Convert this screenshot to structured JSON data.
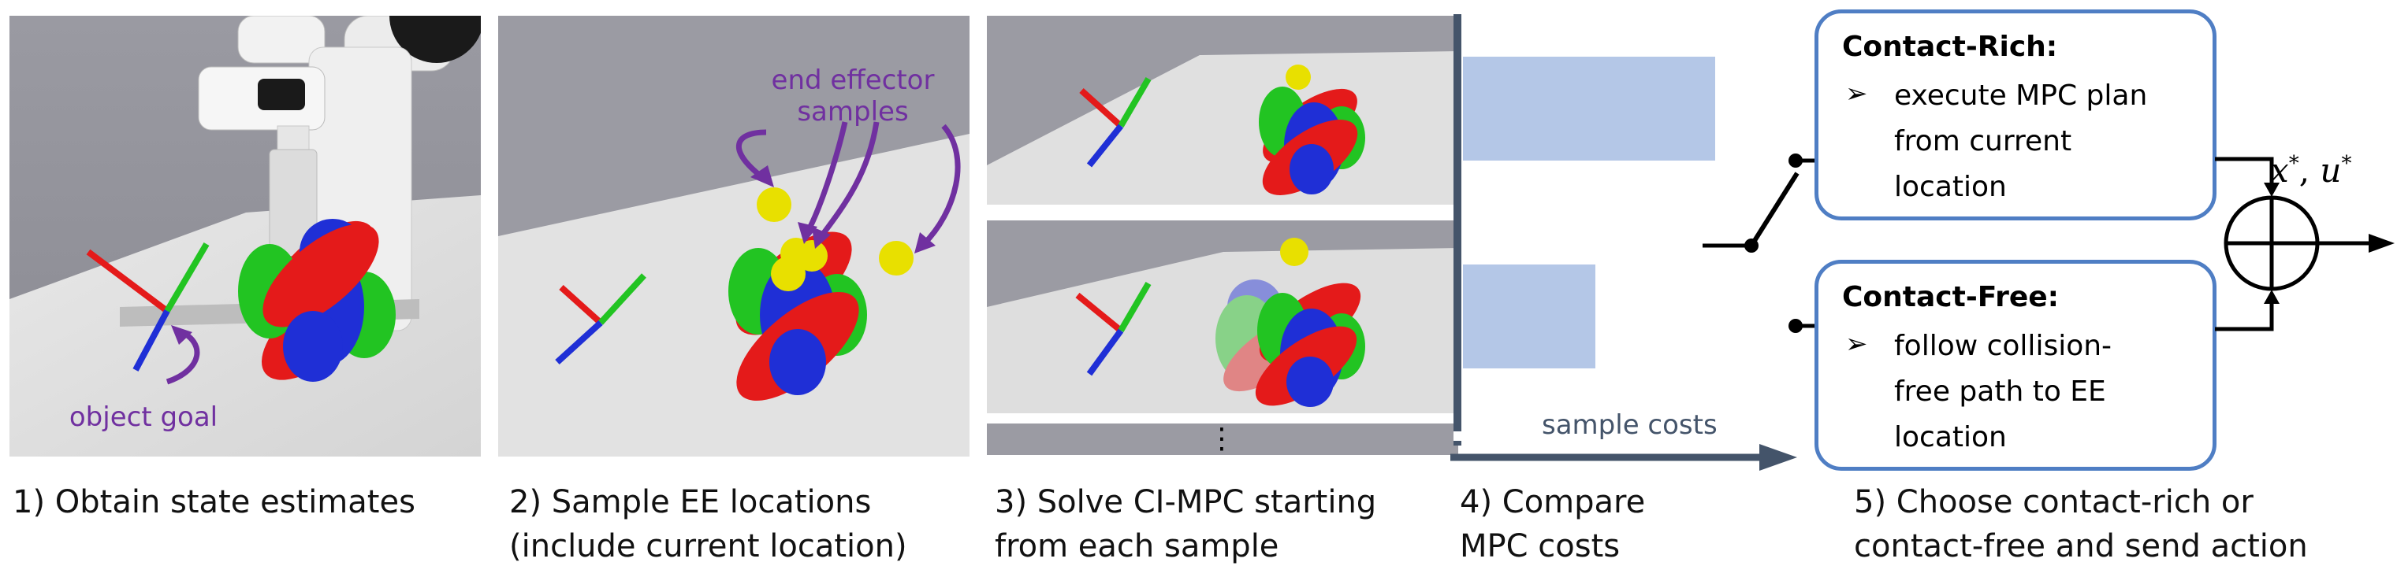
{
  "steps": [
    {
      "caption": "1) Obtain state estimates"
    },
    {
      "caption": "2) Sample EE locations\n(include current location)"
    },
    {
      "caption": "3) Solve CI-MPC starting\nfrom each sample"
    },
    {
      "caption": "4) Compare\nMPC costs"
    },
    {
      "caption": "5) Choose contact-rich or\ncontact-free and send action"
    }
  ],
  "annotations": {
    "object_goal": "object goal",
    "end_effector_samples": "end effector\nsamples",
    "sample_costs": "sample costs",
    "ellipsis": "⋮"
  },
  "contact_rich": {
    "title": "Contact-Rich:",
    "bullet_icon": "➢",
    "text": "execute MPC plan\nfrom current\nlocation"
  },
  "contact_free": {
    "title": "Contact-Free:",
    "bullet_icon": "➢",
    "text": "follow collision-\nfree path to EE\nlocation"
  },
  "output_label": {
    "x": "x",
    "u": "u",
    "star": "*",
    "comma": ", "
  },
  "colors": {
    "box_border": "#4f7ec4",
    "cost_bar": "#b4c7e7",
    "annotation": "#7030a0",
    "arrow_dark": "#44546a",
    "object_red": "#e41a1a",
    "object_green": "#22c422",
    "object_blue": "#1f2fd6",
    "ee_sample": "#e8e000"
  }
}
